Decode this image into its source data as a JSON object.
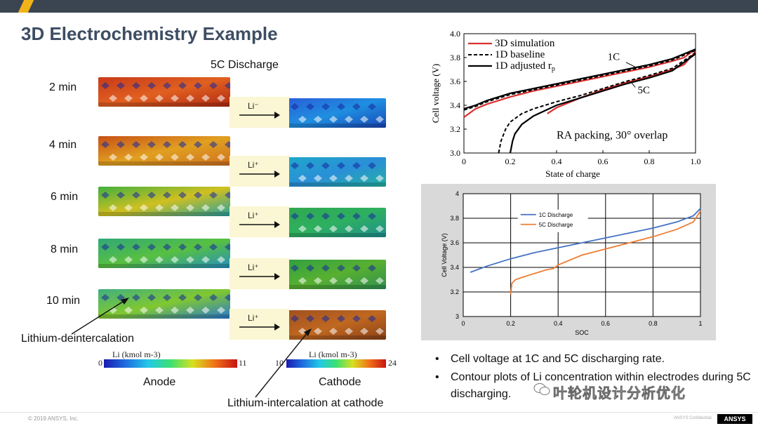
{
  "slide_title": "3D Electrochemistry Example",
  "discharge_label": "5C Discharge",
  "times": [
    "2 min",
    "4 min",
    "6 min",
    "8 min",
    "10 min"
  ],
  "li_labels": [
    "Li⁻",
    "Li⁺",
    "Li⁺",
    "Li⁺",
    "Li⁺"
  ],
  "annotations": {
    "deintercalation": "Lithium-deintercalation",
    "intercalation": "Lithium-intercalation at cathode"
  },
  "anode": {
    "label": "Anode",
    "bar_title": "Li (kmol m-3)",
    "min": "0",
    "max": "11"
  },
  "cathode": {
    "label": "Cathode",
    "bar_title": "Li (kmol m-3)",
    "min": "10",
    "max": "24"
  },
  "bullets": [
    "Cell voltage at 1C and 5C discharging rate.",
    "Contour plots of Li concentration within electrodes during 5C discharging."
  ],
  "footer": {
    "copyright": "© 2019 ANSYS, Inc.",
    "confidential": "ANSYS Confidential",
    "logo": "ANSYS"
  },
  "watermark": "叶轮机设计分析优化",
  "colors": {
    "accent": "#f2b31a",
    "topbar": "#3b4552",
    "title": "#3d4d63"
  },
  "chart_data": [
    {
      "type": "line",
      "xlabel": "State of charge",
      "ylabel": "Cell voltage (V)",
      "xlim": [
        0,
        1.0
      ],
      "ylim": [
        3.0,
        4.0
      ],
      "xticks": [
        "0",
        "0.2",
        "0.4",
        "0.6",
        "0.8",
        "1.0"
      ],
      "yticks": [
        "3.0",
        "3.2",
        "3.4",
        "3.6",
        "3.8",
        "4.0"
      ],
      "legend": [
        "3D simulation",
        "1D baseline",
        "1D adjusted r"
      ],
      "legend_sub": "p",
      "curve_labels": [
        "1C",
        "5C"
      ],
      "annotation": "RA packing, 30° overlap",
      "series": [
        {
          "name": "3D simulation",
          "style": "red",
          "x": [
            0,
            0.05,
            0.1,
            0.2,
            0.3,
            0.4,
            0.5,
            0.6,
            0.7,
            0.8,
            0.9,
            0.95,
            1.0
          ],
          "y": [
            3.3,
            3.37,
            3.41,
            3.47,
            3.52,
            3.56,
            3.6,
            3.64,
            3.68,
            3.72,
            3.77,
            3.8,
            3.87
          ]
        },
        {
          "name": "3D simulation 5C",
          "style": "red",
          "x": [
            0.36,
            0.4,
            0.45,
            0.5,
            0.6,
            0.7,
            0.8,
            0.9,
            0.95,
            1.0
          ],
          "y": [
            3.33,
            3.38,
            3.42,
            3.46,
            3.53,
            3.59,
            3.64,
            3.7,
            3.74,
            3.85
          ]
        },
        {
          "name": "1D baseline",
          "style": "dashed",
          "x": [
            0,
            0.05,
            0.1,
            0.2,
            0.3,
            0.4,
            0.5,
            0.6,
            0.7,
            0.8,
            0.9,
            1.0
          ],
          "y": [
            3.36,
            3.39,
            3.43,
            3.49,
            3.53,
            3.57,
            3.61,
            3.65,
            3.69,
            3.73,
            3.78,
            3.86
          ]
        },
        {
          "name": "1D baseline 5C",
          "style": "dashed",
          "x": [
            0.15,
            0.16,
            0.18,
            0.2,
            0.25,
            0.3,
            0.4,
            0.5,
            0.6,
            0.7,
            0.8,
            0.9,
            1.0
          ],
          "y": [
            3.0,
            3.1,
            3.2,
            3.26,
            3.33,
            3.37,
            3.43,
            3.48,
            3.54,
            3.6,
            3.65,
            3.71,
            3.84
          ]
        },
        {
          "name": "1D adjusted",
          "style": "black",
          "x": [
            0,
            0.05,
            0.1,
            0.2,
            0.3,
            0.4,
            0.5,
            0.6,
            0.7,
            0.8,
            0.9,
            1.0
          ],
          "y": [
            3.37,
            3.4,
            3.44,
            3.5,
            3.54,
            3.58,
            3.62,
            3.66,
            3.7,
            3.74,
            3.79,
            3.87
          ]
        },
        {
          "name": "1D adjusted 5C",
          "style": "black",
          "x": [
            0.2,
            0.21,
            0.22,
            0.25,
            0.3,
            0.4,
            0.5,
            0.6,
            0.7,
            0.8,
            0.9,
            1.0
          ],
          "y": [
            3.0,
            3.1,
            3.16,
            3.24,
            3.31,
            3.4,
            3.46,
            3.52,
            3.58,
            3.63,
            3.69,
            3.83
          ]
        }
      ]
    },
    {
      "type": "line",
      "xlabel": "SOC",
      "ylabel": "Cell Voltage (V)",
      "xlim": [
        0,
        1
      ],
      "ylim": [
        3,
        4
      ],
      "xticks": [
        "0",
        "0.2",
        "0.4",
        "0.6",
        "0.8",
        "1"
      ],
      "yticks": [
        "3",
        "3.2",
        "3.4",
        "3.6",
        "3.8",
        "4"
      ],
      "series": [
        {
          "name": "1C Discharge",
          "color": "#4472c4",
          "x": [
            0.03,
            0.1,
            0.2,
            0.3,
            0.4,
            0.5,
            0.6,
            0.7,
            0.8,
            0.9,
            0.97,
            1.0
          ],
          "y": [
            3.36,
            3.41,
            3.47,
            3.52,
            3.56,
            3.6,
            3.64,
            3.68,
            3.72,
            3.77,
            3.82,
            3.88
          ]
        },
        {
          "name": "5C Discharge",
          "color": "#ed7d31",
          "x": [
            0.2,
            0.205,
            0.22,
            0.25,
            0.3,
            0.35,
            0.38,
            0.4,
            0.5,
            0.6,
            0.7,
            0.8,
            0.9,
            0.97,
            1.0
          ],
          "y": [
            3.18,
            3.27,
            3.3,
            3.32,
            3.35,
            3.38,
            3.39,
            3.42,
            3.5,
            3.55,
            3.6,
            3.65,
            3.71,
            3.77,
            3.86
          ]
        }
      ]
    }
  ]
}
